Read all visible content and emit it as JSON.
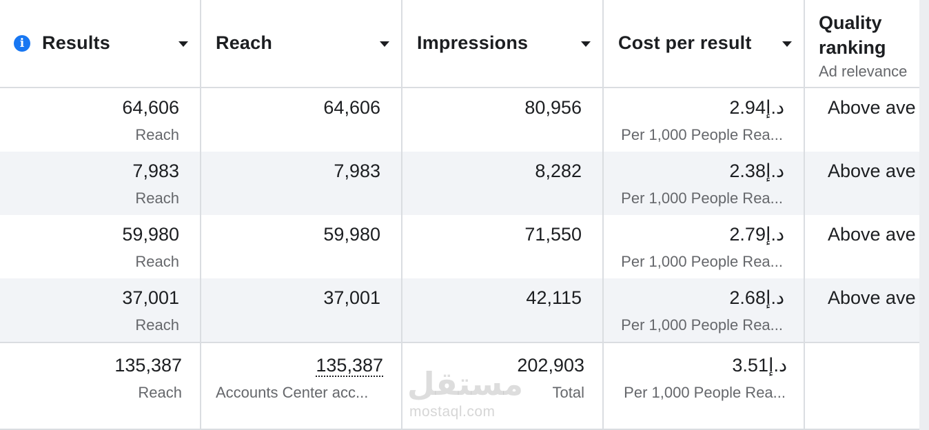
{
  "header": {
    "columns": [
      {
        "label": "Results"
      },
      {
        "label": "Reach"
      },
      {
        "label": "Impressions"
      },
      {
        "label": "Cost per result"
      }
    ],
    "quality_ranking": {
      "title_line1": "Quality",
      "title_line2": "ranking",
      "subtitle": "Ad relevance"
    },
    "icons": {
      "info": "info-icon",
      "sort": "caret-down-icon"
    }
  },
  "rows": [
    {
      "results": "64,606",
      "results_sub": "Reach",
      "reach": "64,606",
      "impressions": "80,956",
      "cost": "د.إ2.94",
      "cost_sub": "Per 1,000 People Rea...",
      "quality": "Above ave"
    },
    {
      "results": "7,983",
      "results_sub": "Reach",
      "reach": "7,983",
      "impressions": "8,282",
      "cost": "د.إ2.38",
      "cost_sub": "Per 1,000 People Rea...",
      "quality": "Above ave"
    },
    {
      "results": "59,980",
      "results_sub": "Reach",
      "reach": "59,980",
      "impressions": "71,550",
      "cost": "د.إ2.79",
      "cost_sub": "Per 1,000 People Rea...",
      "quality": "Above ave"
    },
    {
      "results": "37,001",
      "results_sub": "Reach",
      "reach": "37,001",
      "impressions": "42,115",
      "cost": "د.إ2.68",
      "cost_sub": "Per 1,000 People Rea...",
      "quality": "Above ave"
    }
  ],
  "totals": {
    "results": "135,387",
    "results_sub": "Reach",
    "reach": "135,387",
    "reach_sub": "Accounts Center acc...",
    "impressions": "202,903",
    "impressions_sub": "Total",
    "cost": "د.إ3.51",
    "cost_sub": "Per 1,000 People Rea..."
  },
  "watermark": {
    "arabic": "مستقل",
    "latin": "mostaql.com"
  }
}
